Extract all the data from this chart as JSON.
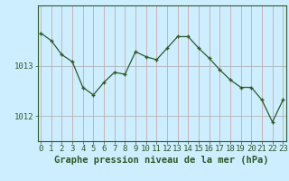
{
  "hours": [
    0,
    1,
    2,
    3,
    4,
    5,
    6,
    7,
    8,
    9,
    10,
    11,
    12,
    13,
    14,
    15,
    16,
    17,
    18,
    19,
    20,
    21,
    22,
    23
  ],
  "pressure": [
    1013.65,
    1013.5,
    1013.22,
    1013.08,
    1012.57,
    1012.42,
    1012.67,
    1012.87,
    1012.83,
    1013.28,
    1013.18,
    1013.12,
    1013.35,
    1013.58,
    1013.58,
    1013.35,
    1013.15,
    1012.92,
    1012.72,
    1012.57,
    1012.57,
    1012.32,
    1011.88,
    1012.32
  ],
  "line_color": "#2d5a27",
  "marker": "+",
  "bg_color": "#cceeff",
  "vgrid_color": "#cc9999",
  "hgrid_color": "#aaaaaa",
  "xlabel": "Graphe pression niveau de la mer (hPa)",
  "ylabel_ticks": [
    1012,
    1013
  ],
  "xlim": [
    0,
    23
  ],
  "ylim": [
    1011.5,
    1014.2
  ],
  "axis_color": "#2d5a27",
  "tick_color": "#2d5a27",
  "label_color": "#2d5a27",
  "xlabel_fontsize": 7.5,
  "tick_fontsize": 6.5
}
